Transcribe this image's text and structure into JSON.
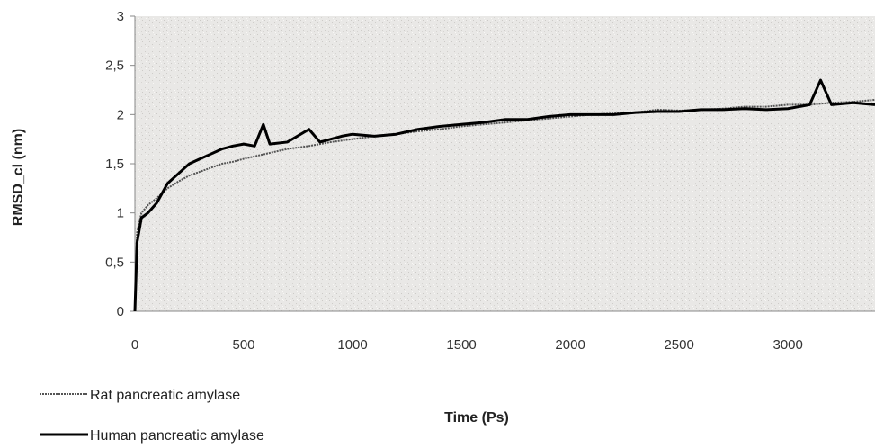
{
  "chart_data": {
    "type": "line",
    "title": "",
    "xlabel": "Time (Ps)",
    "ylabel": "RMSD_cl (nm)",
    "xlim": [
      0,
      3400
    ],
    "ylim": [
      0,
      3
    ],
    "x_ticks": [
      "0",
      "500",
      "1000",
      "1500",
      "2000",
      "2500",
      "3000"
    ],
    "y_ticks": [
      "0",
      "0,5",
      "1",
      "1,5",
      "2",
      "2,5",
      "3"
    ],
    "grid": false,
    "legend_position": "bottom-left",
    "series": [
      {
        "name": "Rat pancreatic amylase",
        "style": "dotted-thin",
        "color": "#555555",
        "x": [
          0,
          10,
          30,
          60,
          100,
          150,
          200,
          250,
          300,
          350,
          400,
          450,
          500,
          600,
          700,
          800,
          900,
          1000,
          1100,
          1200,
          1300,
          1400,
          1500,
          1600,
          1700,
          1800,
          1900,
          2000,
          2100,
          2200,
          2300,
          2400,
          2500,
          2600,
          2700,
          2800,
          2900,
          3000,
          3100,
          3200,
          3300,
          3400
        ],
        "y": [
          0,
          0.8,
          1.0,
          1.08,
          1.15,
          1.25,
          1.32,
          1.38,
          1.42,
          1.46,
          1.5,
          1.52,
          1.55,
          1.6,
          1.65,
          1.68,
          1.72,
          1.75,
          1.78,
          1.8,
          1.83,
          1.85,
          1.88,
          1.9,
          1.92,
          1.94,
          1.96,
          1.98,
          2.0,
          2.01,
          2.02,
          2.05,
          2.04,
          2.05,
          2.06,
          2.08,
          2.08,
          2.1,
          2.1,
          2.12,
          2.13,
          2.15
        ]
      },
      {
        "name": "Human pancreatic amylase",
        "style": "solid-thick",
        "color": "#000000",
        "x": [
          0,
          10,
          30,
          60,
          100,
          150,
          200,
          250,
          300,
          350,
          400,
          450,
          500,
          550,
          590,
          620,
          700,
          800,
          850,
          900,
          950,
          1000,
          1100,
          1200,
          1300,
          1400,
          1500,
          1600,
          1700,
          1800,
          1900,
          2000,
          2100,
          2200,
          2300,
          2400,
          2500,
          2600,
          2700,
          2800,
          2900,
          3000,
          3100,
          3150,
          3200,
          3300,
          3400
        ],
        "y": [
          0,
          0.7,
          0.95,
          1.0,
          1.1,
          1.3,
          1.4,
          1.5,
          1.55,
          1.6,
          1.65,
          1.68,
          1.7,
          1.68,
          1.9,
          1.7,
          1.72,
          1.85,
          1.72,
          1.75,
          1.78,
          1.8,
          1.78,
          1.8,
          1.85,
          1.88,
          1.9,
          1.92,
          1.95,
          1.95,
          1.98,
          2.0,
          2.0,
          2.0,
          2.02,
          2.03,
          2.03,
          2.05,
          2.05,
          2.06,
          2.05,
          2.06,
          2.1,
          2.35,
          2.1,
          2.12,
          2.1
        ]
      }
    ]
  }
}
